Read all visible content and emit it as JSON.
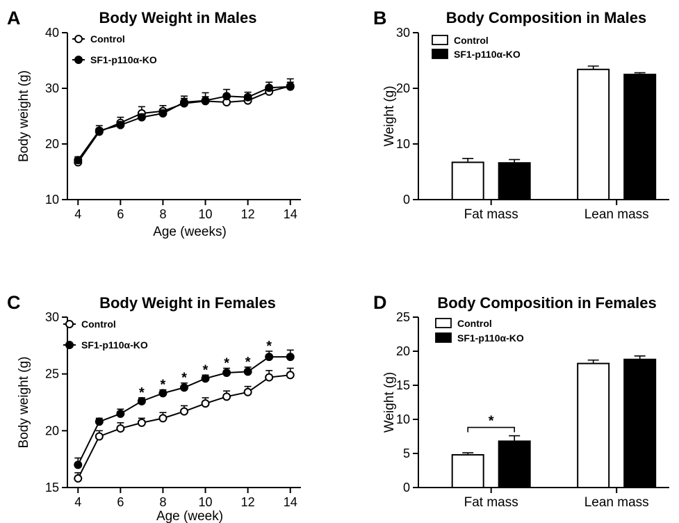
{
  "chart_data": [
    {
      "panel": "A",
      "type": "line",
      "title": "Body Weight in Males",
      "xlabel": "Age (weeks)",
      "ylabel": "Body weight (g)",
      "xlim": [
        3.5,
        14.5
      ],
      "ylim": [
        10,
        40
      ],
      "xticks": [
        4,
        6,
        8,
        10,
        12,
        14
      ],
      "yticks": [
        10,
        20,
        30,
        40
      ],
      "x": [
        4,
        5,
        6,
        7,
        8,
        9,
        10,
        11,
        12,
        13,
        14
      ],
      "series": [
        {
          "name": "Control",
          "marker": "open-circle",
          "values": [
            16.7,
            22.2,
            23.8,
            25.5,
            25.9,
            27.3,
            27.7,
            27.5,
            27.8,
            29.4,
            30.4
          ],
          "errors": [
            0.5,
            0.6,
            1.0,
            1.2,
            1.0,
            0.9,
            1.5,
            1.0,
            1.0,
            0.6,
            1.3
          ]
        },
        {
          "name": "SF1-p110α-KO",
          "marker": "filled-circle",
          "values": [
            17.1,
            22.4,
            23.4,
            24.8,
            25.5,
            27.5,
            27.8,
            28.6,
            28.4,
            30.1,
            30.3
          ],
          "errors": [
            0.6,
            0.9,
            0.6,
            0.6,
            0.6,
            1.1,
            0.7,
            1.2,
            0.9,
            1.0,
            0.8
          ]
        }
      ],
      "legend": "top-left",
      "annotations": []
    },
    {
      "panel": "B",
      "type": "bar",
      "title": "Body Composition in Males",
      "xlabel": "",
      "ylabel": "Weight (g)",
      "ylim": [
        0,
        30
      ],
      "yticks": [
        0,
        10,
        20,
        30
      ],
      "categories": [
        "Fat mass",
        "Lean mass"
      ],
      "series": [
        {
          "name": "Control",
          "fill": "white",
          "values": [
            6.7,
            23.4
          ],
          "errors": [
            0.7,
            0.6
          ]
        },
        {
          "name": "SF1-p110α-KO",
          "fill": "black",
          "values": [
            6.6,
            22.5
          ],
          "errors": [
            0.6,
            0.3
          ]
        }
      ],
      "legend": "top-left",
      "annotations": []
    },
    {
      "panel": "C",
      "type": "line",
      "title": "Body Weight in Females",
      "xlabel": "Age (week)",
      "ylabel": "Body weight (g)",
      "xlim": [
        3.5,
        14.5
      ],
      "ylim": [
        15,
        30
      ],
      "xticks": [
        4,
        6,
        8,
        10,
        12,
        14
      ],
      "yticks": [
        15,
        20,
        25,
        30
      ],
      "x": [
        4,
        5,
        6,
        7,
        8,
        9,
        10,
        11,
        12,
        13,
        14
      ],
      "series": [
        {
          "name": "Control",
          "marker": "open-circle",
          "values": [
            15.8,
            19.5,
            20.2,
            20.7,
            21.1,
            21.7,
            22.4,
            23.0,
            23.4,
            24.7,
            24.9
          ],
          "errors": [
            0.5,
            0.5,
            0.5,
            0.4,
            0.5,
            0.5,
            0.5,
            0.5,
            0.5,
            0.6,
            0.6
          ]
        },
        {
          "name": "SF1-p110α-KO",
          "marker": "filled-circle",
          "values": [
            17.0,
            20.8,
            21.5,
            22.6,
            23.3,
            23.8,
            24.6,
            25.1,
            25.2,
            26.5,
            26.5
          ],
          "errors": [
            0.6,
            0.3,
            0.4,
            0.3,
            0.3,
            0.4,
            0.3,
            0.4,
            0.4,
            0.5,
            0.6
          ]
        }
      ],
      "legend": "top-left",
      "annotations": [
        {
          "text": "*",
          "x": 7
        },
        {
          "text": "*",
          "x": 8
        },
        {
          "text": "*",
          "x": 9
        },
        {
          "text": "*",
          "x": 10
        },
        {
          "text": "*",
          "x": 11
        },
        {
          "text": "*",
          "x": 12
        },
        {
          "text": "*",
          "x": 13
        }
      ]
    },
    {
      "panel": "D",
      "type": "bar",
      "title": "Body Composition in Females",
      "xlabel": "",
      "ylabel": "Weight (g)",
      "ylim": [
        0,
        25
      ],
      "yticks": [
        0,
        5,
        10,
        15,
        20,
        25
      ],
      "categories": [
        "Fat mass",
        "Lean mass"
      ],
      "series": [
        {
          "name": "Control",
          "fill": "white",
          "values": [
            4.8,
            18.2
          ],
          "errors": [
            0.3,
            0.5
          ]
        },
        {
          "name": "SF1-p110α-KO",
          "fill": "black",
          "values": [
            6.8,
            18.8
          ],
          "errors": [
            0.8,
            0.5
          ]
        }
      ],
      "legend": "top-left",
      "annotations": [
        {
          "text": "*",
          "between": [
            "Control",
            "SF1-p110α-KO"
          ],
          "category": "Fat mass"
        }
      ]
    }
  ]
}
